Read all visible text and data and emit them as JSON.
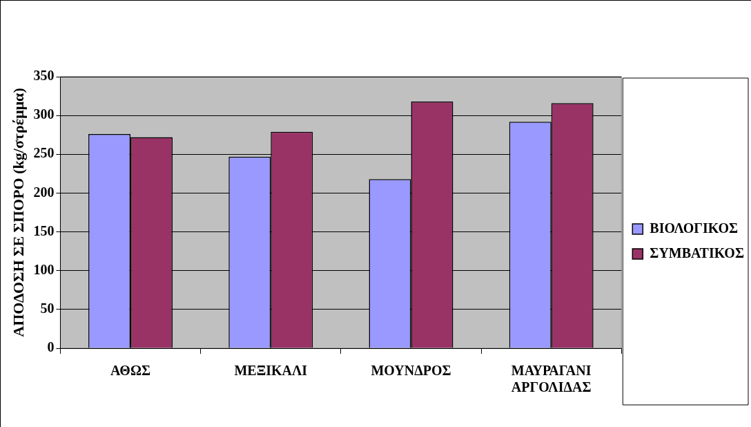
{
  "chart_data": {
    "type": "bar",
    "ylabel": "ΑΠΟΔΟΣΗ ΣΕ ΣΠΟΡΟ (kg/στρέμμα)",
    "categories": [
      "ΑΘΩΣ",
      "ΜΕΞΙΚΑΛΙ",
      "ΜΟΥΝΔΡΟΣ",
      "ΜΑΥΡΑΓΑΝΙ ΑΡΓΟΛΙΔΑΣ"
    ],
    "series": [
      {
        "name": "ΒΙΟΛΟΓΙΚΟΣ",
        "color": "#9999ff",
        "values": [
          276,
          247,
          218,
          292
        ]
      },
      {
        "name": "ΣΥΜΒΑΤΙΚΟΣ",
        "color": "#993366",
        "values": [
          272,
          279,
          318,
          316
        ]
      }
    ],
    "ylim": [
      0,
      350
    ],
    "yticks": [
      0,
      50,
      100,
      150,
      200,
      250,
      300,
      350
    ],
    "grid": "y",
    "legend": "right"
  }
}
